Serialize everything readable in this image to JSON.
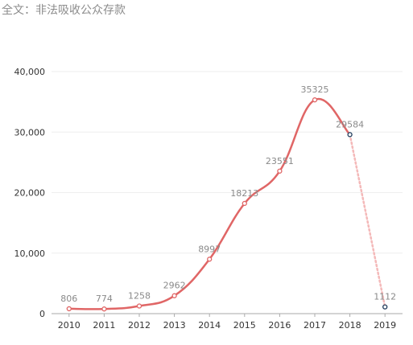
{
  "title": "全文：非法吸收公众存款",
  "colors": {
    "line": "#e06666",
    "projected_line": "#f4b9b9",
    "projected_point": "#1f3a5a",
    "grid": "#eeeeee",
    "axis": "#aaaaaa",
    "label": "#8a8a8a"
  },
  "chart_data": {
    "type": "line",
    "title": "全文：非法吸收公众存款",
    "xlabel": "",
    "ylabel": "",
    "categories": [
      "2010",
      "2011",
      "2012",
      "2013",
      "2014",
      "2015",
      "2016",
      "2017",
      "2018",
      "2019"
    ],
    "values": [
      806,
      774,
      1258,
      2962,
      8997,
      18213,
      23551,
      35325,
      29584,
      1112
    ],
    "data_labels": [
      "806",
      "774",
      "1258",
      "2962",
      "8997",
      "18213",
      "23551",
      "35325",
      "29584",
      "1112"
    ],
    "dashed_segment": [
      "2018",
      "2019"
    ],
    "ylim": [
      0,
      40000
    ],
    "yticks": [
      0,
      10000,
      20000,
      30000,
      40000
    ],
    "ytick_labels": [
      "0",
      "10,000",
      "20,000",
      "30,000",
      "40,000"
    ],
    "grid": true,
    "legend": "none"
  }
}
